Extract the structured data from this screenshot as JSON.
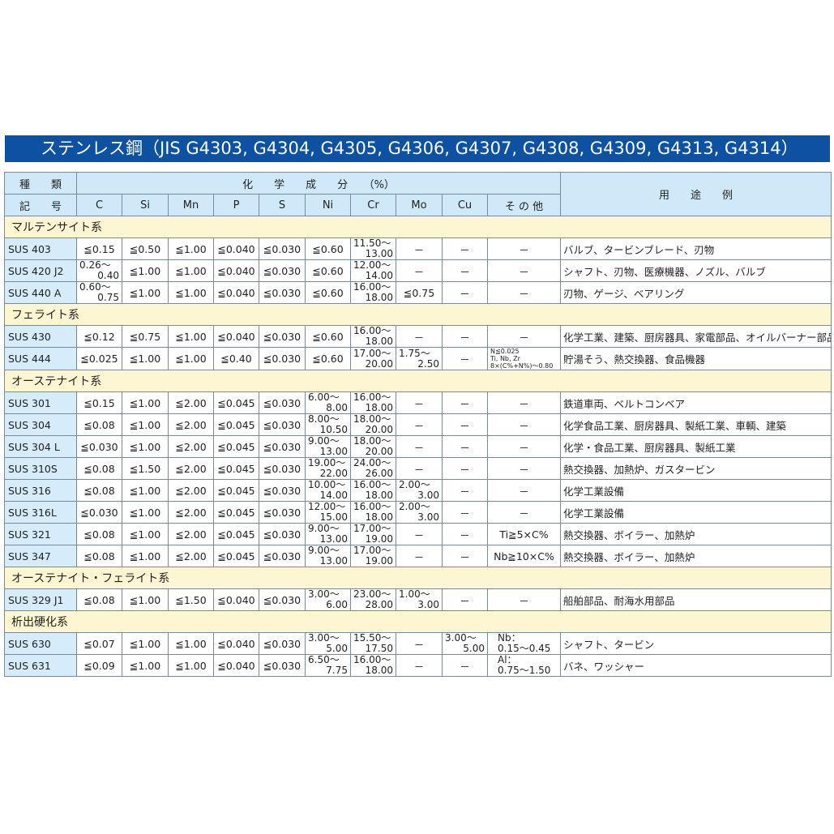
{
  "title": "ステンレス鋼（JIS G4303, G4304, G4305, G4306, G4307, G4308, G4309, G4313, G4314）",
  "header": {
    "kind": "種　　類",
    "code": "記　　号",
    "chem": "化　　学　　成　　分　　（%）",
    "use": "用　　途　　例",
    "cols": [
      "C",
      "Si",
      "Mn",
      "P",
      "S",
      "Ni",
      "Cr",
      "Mo",
      "Cu",
      "そ の 他"
    ]
  },
  "sections": [
    {
      "name": "マルテンサイト系",
      "rows": [
        {
          "code": "SUS 403",
          "vals": [
            "≦0.15",
            "≦0.50",
            "≦1.00",
            "≦0.040",
            "≦0.030",
            "≦0.60",
            "11.50〜|13.00",
            "－",
            "－",
            "－"
          ],
          "use": "バルブ、タービンブレード、刃物"
        },
        {
          "code": "SUS 420 J2",
          "vals": [
            "0.26〜|0.40",
            "≦1.00",
            "≦1.00",
            "≦0.040",
            "≦0.030",
            "≦0.60",
            "12.00〜|14.00",
            "－",
            "－",
            "－"
          ],
          "use": "シャフト、刃物、医療機器、ノズル、バルブ"
        },
        {
          "code": "SUS 440 A",
          "vals": [
            "0.60〜|0.75",
            "≦1.00",
            "≦1.00",
            "≦0.040",
            "≦0.030",
            "≦0.60",
            "16.00〜|18.00",
            "≦0.75",
            "－",
            "－"
          ],
          "use": "刃物、ゲージ、ベアリング"
        }
      ]
    },
    {
      "name": "フェライト系",
      "rows": [
        {
          "code": "SUS 430",
          "vals": [
            "≦0.12",
            "≦0.75",
            "≦1.00",
            "≦0.040",
            "≦0.030",
            "≦0.60",
            "16.00〜|18.00",
            "－",
            "－",
            "－"
          ],
          "use": "化学工業、建築、厨房器具、家電部品、オイルバーナー部品"
        },
        {
          "code": "SUS 444",
          "vals": [
            "≦0.025",
            "≦1.00",
            "≦1.00",
            "≦0.40",
            "≦0.030",
            "≦0.60",
            "17.00〜|20.00",
            "1.75〜|2.50",
            "－",
            "N≦0.025\nTi, Nb, Zr\n8×(C%+N%)〜0.80"
          ],
          "use": "貯湯そう、熱交換器、食品機器"
        }
      ]
    },
    {
      "name": "オーステナイト系",
      "rows": [
        {
          "code": "SUS 301",
          "vals": [
            "≦0.15",
            "≦1.00",
            "≦2.00",
            "≦0.045",
            "≦0.030",
            "6.00〜|8.00",
            "16.00〜|18.00",
            "－",
            "－",
            "－"
          ],
          "use": "鉄道車両、ベルトコンベア"
        },
        {
          "code": "SUS 304",
          "vals": [
            "≦0.08",
            "≦1.00",
            "≦2.00",
            "≦0.045",
            "≦0.030",
            "8.00〜|10.50",
            "18.00〜|20.00",
            "－",
            "－",
            "－"
          ],
          "use": "化学食品工業、厨房器具、製紙工業、車輌、建築"
        },
        {
          "code": "SUS 304 L",
          "vals": [
            "≦0.030",
            "≦1.00",
            "≦2.00",
            "≦0.045",
            "≦0.030",
            "9.00〜|13.00",
            "18.00〜|20.00",
            "－",
            "－",
            "－"
          ],
          "use": "化学・食品工業、厨房器具、製紙工業"
        },
        {
          "code": "SUS 310S",
          "vals": [
            "≦0.08",
            "≦1.50",
            "≦2.00",
            "≦0.045",
            "≦0.030",
            "19.00〜|22.00",
            "24.00〜|26.00",
            "－",
            "－",
            "－"
          ],
          "use": "熱交換器、加熱炉、ガスタービン"
        },
        {
          "code": "SUS 316",
          "vals": [
            "≦0.08",
            "≦1.00",
            "≦2.00",
            "≦0.045",
            "≦0.030",
            "10.00〜|14.00",
            "16.00〜|18.00",
            "2.00〜|3.00",
            "－",
            "－"
          ],
          "use": "化学工業設備"
        },
        {
          "code": "SUS 316L",
          "vals": [
            "≦0.030",
            "≦1.00",
            "≦2.00",
            "≦0.045",
            "≦0.030",
            "12.00〜|15.00",
            "16.00〜|18.00",
            "2.00〜|3.00",
            "－",
            "－"
          ],
          "use": "化学工業設備"
        },
        {
          "code": "SUS 321",
          "vals": [
            "≦0.08",
            "≦1.00",
            "≦2.00",
            "≦0.045",
            "≦0.030",
            "9.00〜|13.00",
            "17.00〜|19.00",
            "－",
            "－",
            "Ti≧5×C%"
          ],
          "use": "熱交換器、ボイラー、加熱炉"
        },
        {
          "code": "SUS 347",
          "vals": [
            "≦0.08",
            "≦1.00",
            "≦2.00",
            "≦0.045",
            "≦0.030",
            "9.00〜|13.00",
            "17.00〜|19.00",
            "－",
            "－",
            "Nb≧10×C%"
          ],
          "use": "熱交換器、ボイラー、加熱炉"
        }
      ]
    },
    {
      "name": "オーステナイト・フェライト系",
      "rows": [
        {
          "code": "SUS 329 J1",
          "vals": [
            "≦0.08",
            "≦1.00",
            "≦1.50",
            "≦0.040",
            "≦0.030",
            "3.00〜|6.00",
            "23.00〜|28.00",
            "1.00〜|3.00",
            "－",
            "－"
          ],
          "use": "船舶部品、耐海水用部品"
        }
      ]
    },
    {
      "name": "析出硬化系",
      "rows": [
        {
          "code": "SUS 630",
          "vals": [
            "≦0.07",
            "≦1.00",
            "≦1.00",
            "≦0.040",
            "≦0.030",
            "3.00〜|5.00",
            "15.50〜|17.50",
            "－",
            "3.00〜|5.00",
            "Nb：\n0.15〜0.45"
          ],
          "use": "シャフト、タービン"
        },
        {
          "code": "SUS 631",
          "vals": [
            "≦0.09",
            "≦1.00",
            "≦1.00",
            "≦0.040",
            "≦0.030",
            "6.50〜|7.75",
            "16.00〜|18.00",
            "－",
            "－",
            "Al：\n0.75〜1.50"
          ],
          "use": "バネ、ワッシャー"
        }
      ]
    }
  ]
}
